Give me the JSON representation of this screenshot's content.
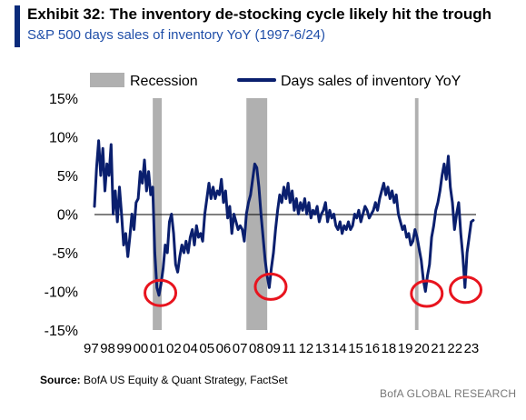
{
  "header": {
    "title": "Exhibit 32: The inventory de-stocking cycle likely hit the trough",
    "subtitle": "S&P 500 days sales of inventory YoY (1997-6/24)"
  },
  "footer": {
    "source_label": "Source:",
    "source_text": "BofA US Equity & Quant Strategy, FactSet",
    "brand": "BofA GLOBAL RESEARCH"
  },
  "colors": {
    "series": "#0a1f6e",
    "recession": "#b0b0b0",
    "annotation": "#e8141e",
    "title_bar": "#0a2a7a"
  },
  "chart_data": {
    "type": "line",
    "title": "",
    "xlabel": "",
    "ylabel": "",
    "ylim": [
      -15,
      15
    ],
    "yticks": [
      {
        "value": 15,
        "label": "15%"
      },
      {
        "value": 10,
        "label": "10%"
      },
      {
        "value": 5,
        "label": "5%"
      },
      {
        "value": 0,
        "label": "0%"
      },
      {
        "value": -5,
        "label": "-5%"
      },
      {
        "value": -10,
        "label": "-10%"
      },
      {
        "value": -15,
        "label": "-15%"
      }
    ],
    "xlim": [
      1997,
      2024.5
    ],
    "xtick_labels": [
      "97",
      "98",
      "99",
      "00",
      "01",
      "02",
      "04",
      "05",
      "06",
      "07",
      "08",
      "09",
      "11",
      "12",
      "13",
      "14",
      "15",
      "16",
      "18",
      "19",
      "20",
      "21",
      "22",
      "23"
    ],
    "grid": false,
    "legend_position": "top",
    "legend": [
      {
        "label": "Recession",
        "kind": "bar"
      },
      {
        "label": "Days sales of inventory YoY",
        "kind": "line"
      }
    ],
    "recessions": [
      {
        "start": 2001.2,
        "end": 2001.85
      },
      {
        "start": 2007.95,
        "end": 2009.45
      },
      {
        "start": 2020.1,
        "end": 2020.35
      }
    ],
    "series": [
      {
        "name": "Days sales of inventory YoY",
        "points": [
          [
            1997.0,
            1
          ],
          [
            1997.15,
            6
          ],
          [
            1997.3,
            9.5
          ],
          [
            1997.45,
            5
          ],
          [
            1997.6,
            8.5
          ],
          [
            1997.75,
            3
          ],
          [
            1997.9,
            6.5
          ],
          [
            1998.05,
            5
          ],
          [
            1998.2,
            9
          ],
          [
            1998.35,
            0
          ],
          [
            1998.5,
            3
          ],
          [
            1998.65,
            -1
          ],
          [
            1998.8,
            3.5
          ],
          [
            1998.95,
            0
          ],
          [
            1999.1,
            -4
          ],
          [
            1999.25,
            -2.5
          ],
          [
            1999.4,
            -5.5
          ],
          [
            1999.55,
            -3
          ],
          [
            1999.7,
            0
          ],
          [
            1999.85,
            -2
          ],
          [
            2000.0,
            1.5
          ],
          [
            2000.15,
            2
          ],
          [
            2000.3,
            5.5
          ],
          [
            2000.45,
            4
          ],
          [
            2000.6,
            7
          ],
          [
            2000.75,
            3
          ],
          [
            2000.9,
            5.5
          ],
          [
            2001.05,
            2.5
          ],
          [
            2001.2,
            3.5
          ],
          [
            2001.35,
            -5
          ],
          [
            2001.5,
            -9.5
          ],
          [
            2001.65,
            -10.5
          ],
          [
            2001.8,
            -9
          ],
          [
            2001.95,
            -7
          ],
          [
            2002.1,
            -4
          ],
          [
            2002.25,
            -5
          ],
          [
            2002.4,
            -1
          ],
          [
            2002.55,
            0
          ],
          [
            2002.7,
            -2.5
          ],
          [
            2002.85,
            -6.5
          ],
          [
            2003.0,
            -7.5
          ],
          [
            2003.15,
            -5.5
          ],
          [
            2003.3,
            -4
          ],
          [
            2003.45,
            -5
          ],
          [
            2003.6,
            -3.5
          ],
          [
            2003.75,
            -5
          ],
          [
            2003.9,
            -3
          ],
          [
            2004.05,
            -2
          ],
          [
            2004.2,
            -4
          ],
          [
            2004.35,
            -1.5
          ],
          [
            2004.5,
            -3
          ],
          [
            2004.65,
            -2.5
          ],
          [
            2004.8,
            -3.5
          ],
          [
            2004.95,
            0
          ],
          [
            2005.1,
            2
          ],
          [
            2005.25,
            4
          ],
          [
            2005.4,
            2
          ],
          [
            2005.55,
            3.5
          ],
          [
            2005.7,
            2
          ],
          [
            2005.85,
            3
          ],
          [
            2006.0,
            2.5
          ],
          [
            2006.15,
            4.5
          ],
          [
            2006.3,
            1.5
          ],
          [
            2006.45,
            3
          ],
          [
            2006.6,
            -0.5
          ],
          [
            2006.75,
            1
          ],
          [
            2006.9,
            -2.5
          ],
          [
            2007.05,
            0
          ],
          [
            2007.2,
            -1
          ],
          [
            2007.35,
            -2
          ],
          [
            2007.5,
            -1.5
          ],
          [
            2007.65,
            -2
          ],
          [
            2007.8,
            -3.5
          ],
          [
            2007.95,
            0
          ],
          [
            2008.1,
            1.5
          ],
          [
            2008.25,
            2.5
          ],
          [
            2008.4,
            4.5
          ],
          [
            2008.55,
            6.5
          ],
          [
            2008.7,
            6
          ],
          [
            2008.85,
            3.5
          ],
          [
            2009.0,
            0
          ],
          [
            2009.15,
            -3
          ],
          [
            2009.3,
            -6
          ],
          [
            2009.45,
            -8
          ],
          [
            2009.6,
            -9.5
          ],
          [
            2009.75,
            -7
          ],
          [
            2009.9,
            -5
          ],
          [
            2010.05,
            -2
          ],
          [
            2010.2,
            0.5
          ],
          [
            2010.35,
            2.5
          ],
          [
            2010.5,
            1.5
          ],
          [
            2010.65,
            3.5
          ],
          [
            2010.8,
            2
          ],
          [
            2010.95,
            4
          ],
          [
            2011.1,
            1.5
          ],
          [
            2011.25,
            3
          ],
          [
            2011.4,
            0.5
          ],
          [
            2011.55,
            2
          ],
          [
            2011.7,
            0
          ],
          [
            2011.85,
            1.5
          ],
          [
            2012.0,
            0.5
          ],
          [
            2012.15,
            2
          ],
          [
            2012.3,
            0
          ],
          [
            2012.45,
            1.5
          ],
          [
            2012.6,
            -0.5
          ],
          [
            2012.75,
            0.5
          ],
          [
            2012.9,
            0
          ],
          [
            2013.05,
            1
          ],
          [
            2013.2,
            -1
          ],
          [
            2013.35,
            0
          ],
          [
            2013.5,
            0.5
          ],
          [
            2013.65,
            1.5
          ],
          [
            2013.8,
            -1
          ],
          [
            2013.95,
            0.5
          ],
          [
            2014.1,
            -0.5
          ],
          [
            2014.25,
            0
          ],
          [
            2014.4,
            -1.5
          ],
          [
            2014.55,
            -2
          ],
          [
            2014.7,
            -1
          ],
          [
            2014.85,
            -2.5
          ],
          [
            2015.0,
            -1.5
          ],
          [
            2015.15,
            -2
          ],
          [
            2015.3,
            -1
          ],
          [
            2015.45,
            -2
          ],
          [
            2015.6,
            -1.5
          ],
          [
            2015.75,
            0
          ],
          [
            2015.9,
            -0.5
          ],
          [
            2016.05,
            0.5
          ],
          [
            2016.2,
            -1
          ],
          [
            2016.35,
            0
          ],
          [
            2016.5,
            1
          ],
          [
            2016.65,
            0.5
          ],
          [
            2016.8,
            -0.5
          ],
          [
            2016.95,
            0
          ],
          [
            2017.1,
            0.5
          ],
          [
            2017.25,
            1.5
          ],
          [
            2017.4,
            0.5
          ],
          [
            2017.55,
            2
          ],
          [
            2017.7,
            3
          ],
          [
            2017.85,
            4
          ],
          [
            2018.0,
            2.5
          ],
          [
            2018.15,
            3.5
          ],
          [
            2018.3,
            2
          ],
          [
            2018.45,
            3
          ],
          [
            2018.6,
            1.5
          ],
          [
            2018.75,
            2.5
          ],
          [
            2018.9,
            0
          ],
          [
            2019.05,
            -1
          ],
          [
            2019.2,
            -2
          ],
          [
            2019.35,
            -1.5
          ],
          [
            2019.5,
            -3
          ],
          [
            2019.65,
            -2.5
          ],
          [
            2019.8,
            -4
          ],
          [
            2019.95,
            -3.5
          ],
          [
            2020.1,
            -2
          ],
          [
            2020.25,
            -3
          ],
          [
            2020.4,
            -4.5
          ],
          [
            2020.55,
            -6
          ],
          [
            2020.7,
            -8.5
          ],
          [
            2020.85,
            -10
          ],
          [
            2021.0,
            -8
          ],
          [
            2021.15,
            -6.5
          ],
          [
            2021.3,
            -3
          ],
          [
            2021.45,
            -1.5
          ],
          [
            2021.6,
            0.5
          ],
          [
            2021.75,
            1.5
          ],
          [
            2021.9,
            3
          ],
          [
            2022.05,
            5
          ],
          [
            2022.2,
            6.5
          ],
          [
            2022.35,
            4.5
          ],
          [
            2022.5,
            7.5
          ],
          [
            2022.65,
            3.5
          ],
          [
            2022.8,
            1.5
          ],
          [
            2022.95,
            -2
          ],
          [
            2023.1,
            0
          ],
          [
            2023.25,
            1.5
          ],
          [
            2023.4,
            -2.5
          ],
          [
            2023.55,
            -5.5
          ],
          [
            2023.7,
            -9.5
          ],
          [
            2023.85,
            -5
          ],
          [
            2024.0,
            -3
          ],
          [
            2024.15,
            -1
          ],
          [
            2024.3,
            -0.8
          ]
        ]
      }
    ],
    "annotations": [
      {
        "type": "circle",
        "x": 2001.75,
        "y": -10.2
      },
      {
        "type": "circle",
        "x": 2009.7,
        "y": -9.4
      },
      {
        "type": "circle",
        "x": 2020.95,
        "y": -10.3
      },
      {
        "type": "circle",
        "x": 2023.75,
        "y": -9.8
      }
    ]
  }
}
